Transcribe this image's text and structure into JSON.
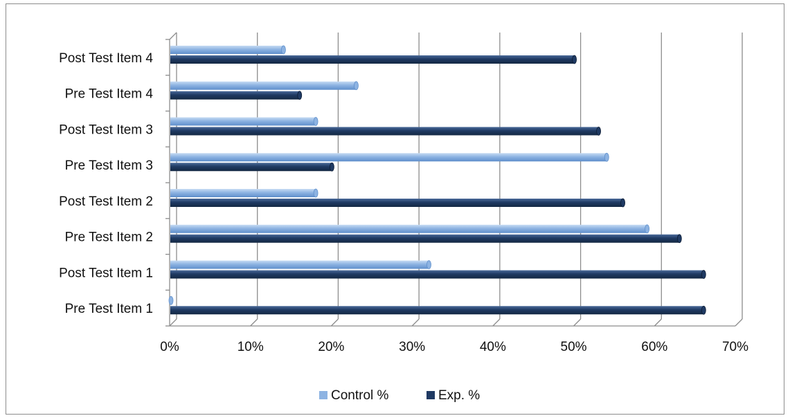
{
  "chart_data": {
    "type": "bar",
    "orientation": "horizontal",
    "categories": [
      "Pre Test Item 1",
      "Post Test Item 1",
      "Pre Test Item 2",
      "Post Test Item 2",
      "Pre Test Item 3",
      "Post Test Item 3",
      "Pre Test Item 4",
      "Post Test Item 4"
    ],
    "series": [
      {
        "name": "Control %",
        "color": "#8db3e2",
        "values": [
          0,
          32,
          59,
          18,
          54,
          18,
          23,
          14
        ]
      },
      {
        "name": "Exp. %",
        "color": "#1f3a63",
        "values": [
          66,
          66,
          63,
          56,
          20,
          53,
          16,
          50
        ]
      }
    ],
    "xlim": [
      0,
      70
    ],
    "xticks": [
      "0%",
      "10%",
      "20%",
      "30%",
      "40%",
      "50%",
      "60%",
      "70%"
    ],
    "grid": true,
    "legend_position": "bottom"
  }
}
